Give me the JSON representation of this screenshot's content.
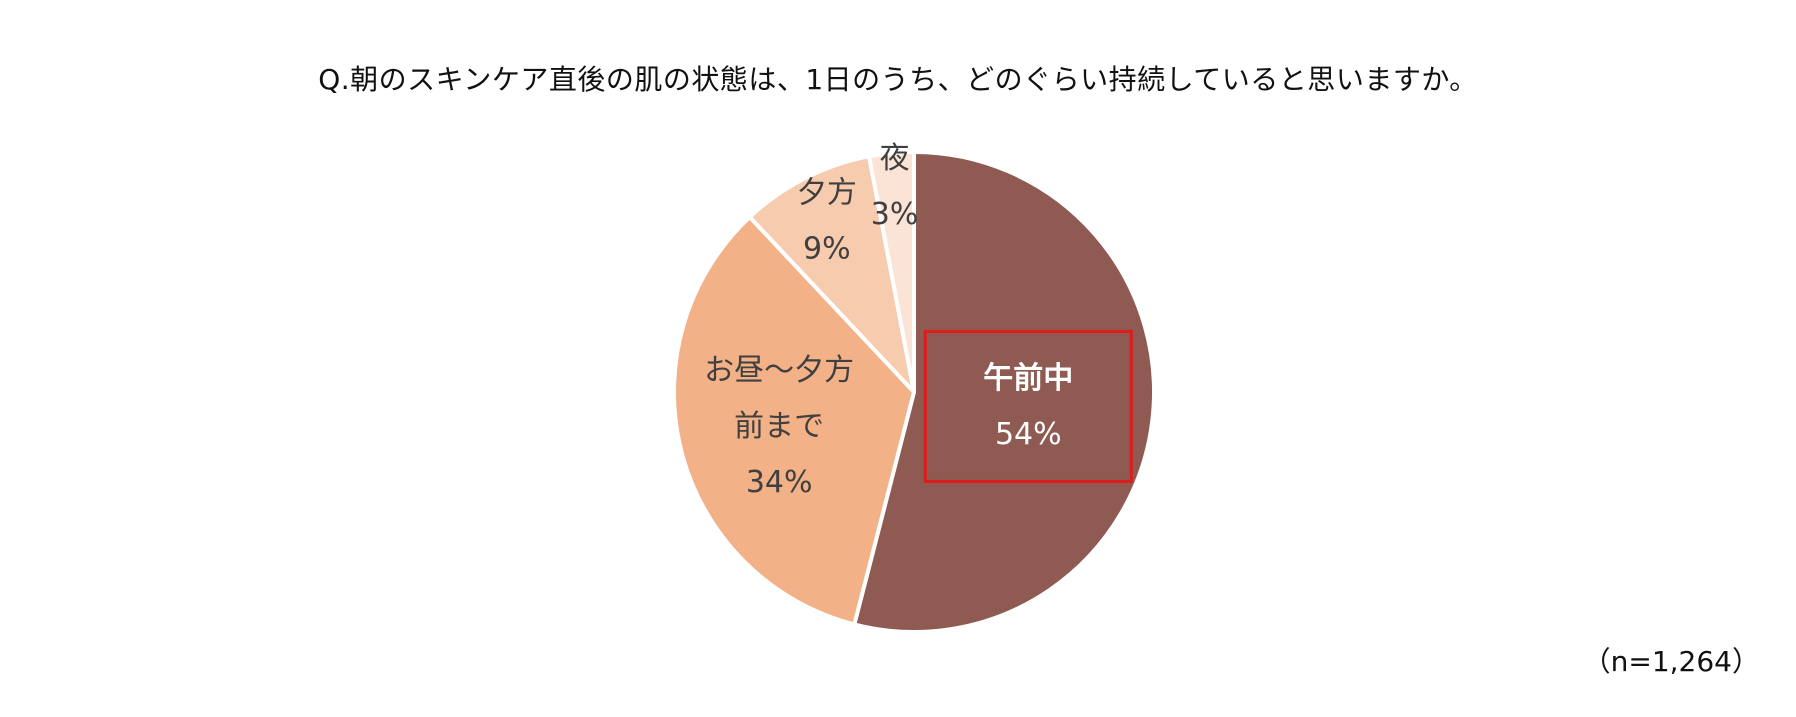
{
  "chart_data": {
    "type": "pie",
    "title": "Q.朝のスキンケア直後の肌の状態は、1日のうち、どのぐらい持続していると思いますか。",
    "note": "（n=1,264）",
    "slices": [
      {
        "label_lines": [
          "午前中"
        ],
        "value": 54,
        "value_label": "54%",
        "color": "#8e5a51",
        "text_color": "#ffffff",
        "label_bold": true,
        "highlight": true
      },
      {
        "label_lines": [
          "お昼～夕方",
          "前まで"
        ],
        "value": 34,
        "value_label": "34%",
        "color": "#f2b187",
        "text_color": "#404040",
        "label_bold": false,
        "highlight": false
      },
      {
        "label_lines": [
          "夕方"
        ],
        "value": 9,
        "value_label": "9%",
        "color": "#f7cbad",
        "text_color": "#404040",
        "label_bold": false,
        "highlight": false
      },
      {
        "label_lines": [
          "夜"
        ],
        "value": 3,
        "value_label": "3%",
        "color": "#fbe3d6",
        "text_color": "#404040",
        "label_bold": false,
        "highlight": false
      }
    ],
    "highlight_color": "#e01b1b"
  }
}
